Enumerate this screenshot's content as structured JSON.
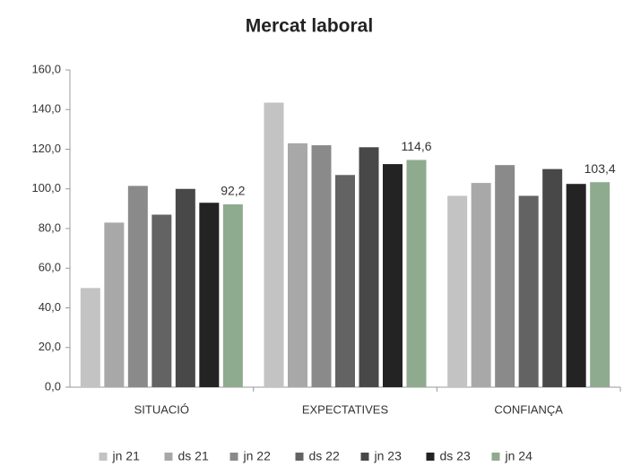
{
  "chart_data": {
    "type": "bar",
    "title": "Mercat laboral",
    "categories": [
      "SITUACIÓ",
      "EXPECTATIVES",
      "CONFIANÇA"
    ],
    "series": [
      {
        "name": "jn 21",
        "color": "#c3c3c3",
        "values": [
          50,
          143.5,
          96.5
        ]
      },
      {
        "name": "ds 21",
        "color": "#a8a8a8",
        "values": [
          83,
          123,
          103
        ]
      },
      {
        "name": "jn 22",
        "color": "#8a8a8a",
        "values": [
          101.5,
          122,
          112
        ]
      },
      {
        "name": "ds 22",
        "color": "#636363",
        "values": [
          87,
          107,
          96.5
        ]
      },
      {
        "name": "jn 23",
        "color": "#484848",
        "values": [
          100,
          121,
          110
        ]
      },
      {
        "name": "ds 23",
        "color": "#232323",
        "values": [
          93,
          112.5,
          102.5
        ]
      },
      {
        "name": "jn 24",
        "color": "#8fab8f",
        "values": [
          92.2,
          114.6,
          103.4
        ],
        "value_labels": [
          "92,2",
          "114,6",
          "103,4"
        ]
      }
    ],
    "ylim": [
      0,
      160
    ],
    "yticks": [
      {
        "value": 0,
        "label": "0,0"
      },
      {
        "value": 20,
        "label": "20,0"
      },
      {
        "value": 40,
        "label": "40,0"
      },
      {
        "value": 60,
        "label": "60,0"
      },
      {
        "value": 80,
        "label": "80,0"
      },
      {
        "value": 100,
        "label": "100,0"
      },
      {
        "value": 120,
        "label": "120,0"
      },
      {
        "value": 140,
        "label": "140,0"
      },
      {
        "value": 160,
        "label": "160,0"
      }
    ],
    "legend": "bottom"
  }
}
